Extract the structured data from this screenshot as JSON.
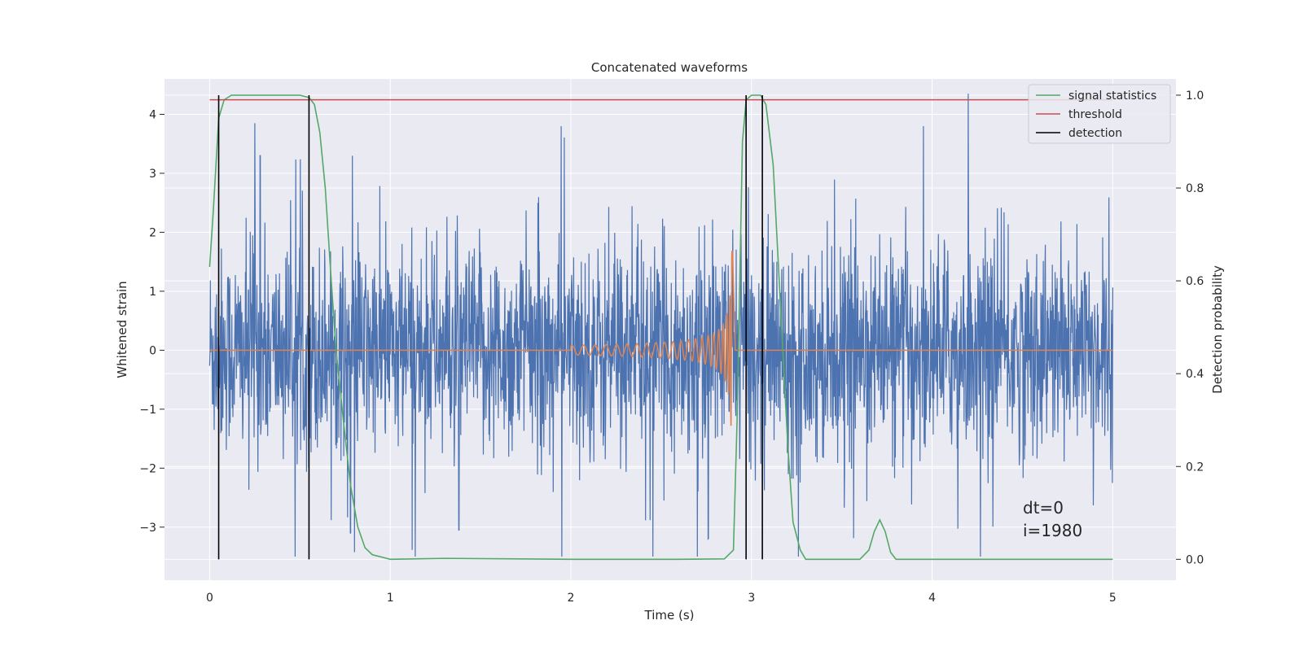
{
  "colors": {
    "axes_bg": "#EAEAF2",
    "grid": "#FFFFFF",
    "strain": "#4C72B0",
    "template": "#DD8452",
    "signal_statistics": "#55A868",
    "threshold": "#C44E52",
    "detection": "#000000"
  },
  "chart_data": {
    "type": "line",
    "title": "Concatenated waveforms",
    "xlabel": "Time (s)",
    "ylabel_left": "Whitened strain",
    "ylabel_right": "Detection probability",
    "xlim": [
      -0.25,
      5.35
    ],
    "ylim_left": [
      -3.9,
      4.6
    ],
    "ylim_right": [
      -0.045,
      1.035
    ],
    "x_ticks": [
      0,
      1,
      2,
      3,
      4,
      5
    ],
    "x_tick_labels": [
      "0",
      "1",
      "2",
      "3",
      "4",
      "5"
    ],
    "y_left_ticks": [
      -3,
      -2,
      -1,
      0,
      1,
      2,
      3,
      4
    ],
    "y_left_tick_labels": [
      "−3",
      "−2",
      "−1",
      "0",
      "1",
      "2",
      "3",
      "4"
    ],
    "y_right_ticks": [
      0.0,
      0.2,
      0.4,
      0.6,
      0.8,
      1.0
    ],
    "y_right_tick_labels": [
      "0.0",
      "0.2",
      "0.4",
      "0.6",
      "0.8",
      "1.0"
    ],
    "grid": true,
    "legend": {
      "placement": "top-right",
      "entries": [
        "signal statistics",
        "threshold",
        "detection"
      ]
    },
    "series": [
      {
        "name": "signal statistics",
        "axis": "right",
        "x": [
          0.0,
          0.02,
          0.05,
          0.08,
          0.12,
          0.2,
          0.3,
          0.45,
          0.5,
          0.55,
          0.58,
          0.61,
          0.64,
          0.67,
          0.7,
          0.74,
          0.78,
          0.82,
          0.86,
          0.9,
          1.0,
          1.3,
          2.0,
          2.6,
          2.85,
          2.9,
          2.92,
          2.95,
          2.97,
          3.0,
          3.05,
          3.08,
          3.12,
          3.16,
          3.2,
          3.23,
          3.27,
          3.3,
          4.0,
          3.6,
          3.65,
          3.68,
          3.71,
          3.74,
          3.77,
          3.8,
          4.0,
          5.0
        ],
        "y": [
          0.63,
          0.75,
          0.95,
          0.99,
          1.0,
          1.0,
          1.0,
          1.0,
          1.0,
          0.995,
          0.98,
          0.92,
          0.8,
          0.62,
          0.45,
          0.3,
          0.16,
          0.07,
          0.025,
          0.01,
          0.0,
          0.002,
          0.0,
          0.0,
          0.001,
          0.02,
          0.3,
          0.9,
          0.99,
          1.0,
          1.0,
          0.98,
          0.85,
          0.55,
          0.25,
          0.08,
          0.02,
          0.0,
          0.0,
          0.0,
          0.02,
          0.06,
          0.085,
          0.06,
          0.015,
          0.0,
          0.0,
          0.0
        ]
      },
      {
        "name": "threshold",
        "axis": "right",
        "x": [
          0.0,
          5.0
        ],
        "y": [
          0.99,
          0.99
        ]
      },
      {
        "name": "detection",
        "axis": "right",
        "x": [
          0.05,
          0.55,
          2.97,
          3.06
        ],
        "y_range": [
          0.0,
          1.0
        ]
      },
      {
        "axis": "left",
        "kind": "noise",
        "x_range": [
          0.0,
          5.0
        ],
        "envelope": [
          -3.5,
          4.2
        ],
        "peak_points": [
          [
            0.25,
            3.85
          ],
          [
            0.28,
            3.3
          ],
          [
            4.2,
            4.35
          ],
          [
            2.7,
            -3.5
          ],
          [
            2.76,
            -3.2
          ],
          [
            0.78,
            -3.1
          ],
          [
            1.38,
            -3.05
          ]
        ]
      },
      {
        "axis": "left",
        "kind": "chirp",
        "x_range": [
          2.0,
          2.9
        ],
        "peak_amplitude": 1.68
      }
    ],
    "annotations": [
      "dt=0",
      "i=1980"
    ]
  }
}
